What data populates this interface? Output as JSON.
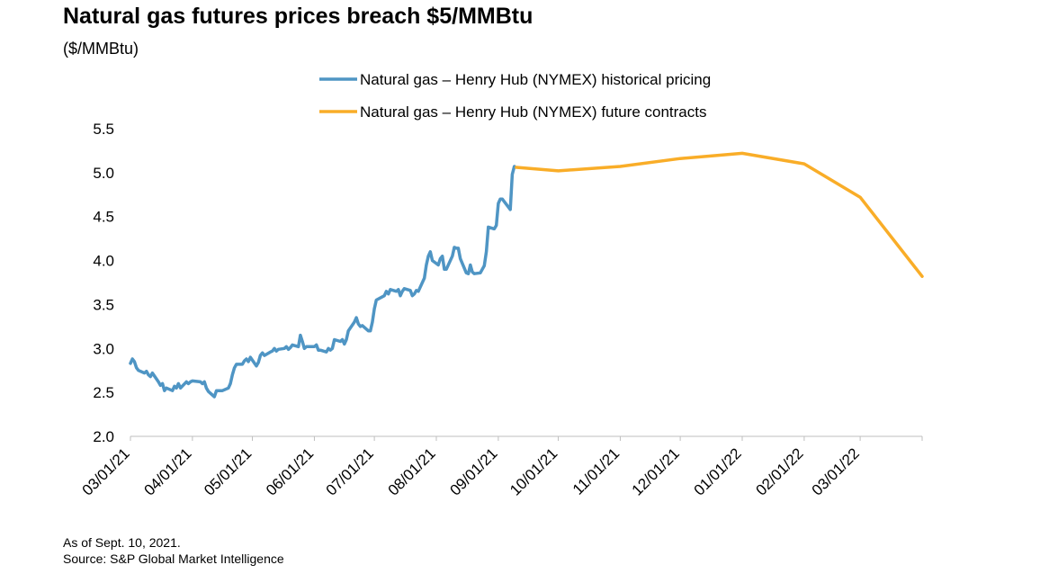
{
  "title": "Natural gas futures prices breach $5/MMBtu",
  "subtitle": "($/MMBtu)",
  "footnote": {
    "as_of": "As of Sept. 10, 2021.",
    "source": "Source: S&P Global Market Intelligence"
  },
  "chart_data": {
    "type": "line",
    "title": "Natural gas futures prices breach $5/MMBtu",
    "ylabel": "($/MMBtu)",
    "xlabel": "",
    "ylim": [
      2.0,
      5.5
    ],
    "yticks": [
      2.0,
      2.5,
      3.0,
      3.5,
      4.0,
      4.5,
      5.0,
      5.5
    ],
    "xticks": [
      "03/01/21",
      "04/01/21",
      "05/01/21",
      "06/01/21",
      "07/01/21",
      "08/01/21",
      "09/01/21",
      "10/01/21",
      "11/01/21",
      "12/01/21",
      "01/01/22",
      "02/01/22",
      "03/01/22"
    ],
    "xlim": [
      "2021-03-01",
      "2022-04-01"
    ],
    "grid": false,
    "legend_position": "top",
    "series": [
      {
        "name": "Natural gas – Henry Hub (NYMEX) historical pricing",
        "color": "#4f95c4",
        "points": [
          [
            "2021-03-01",
            2.83
          ],
          [
            "2021-03-02",
            2.88
          ],
          [
            "2021-03-03",
            2.85
          ],
          [
            "2021-03-04",
            2.78
          ],
          [
            "2021-03-05",
            2.75
          ],
          [
            "2021-03-08",
            2.72
          ],
          [
            "2021-03-09",
            2.74
          ],
          [
            "2021-03-10",
            2.7
          ],
          [
            "2021-03-11",
            2.68
          ],
          [
            "2021-03-12",
            2.72
          ],
          [
            "2021-03-15",
            2.62
          ],
          [
            "2021-03-16",
            2.58
          ],
          [
            "2021-03-17",
            2.6
          ],
          [
            "2021-03-18",
            2.52
          ],
          [
            "2021-03-19",
            2.55
          ],
          [
            "2021-03-22",
            2.52
          ],
          [
            "2021-03-23",
            2.57
          ],
          [
            "2021-03-24",
            2.55
          ],
          [
            "2021-03-25",
            2.6
          ],
          [
            "2021-03-26",
            2.55
          ],
          [
            "2021-03-29",
            2.62
          ],
          [
            "2021-03-30",
            2.6
          ],
          [
            "2021-03-31",
            2.62
          ],
          [
            "2021-04-01",
            2.63
          ],
          [
            "2021-04-05",
            2.62
          ],
          [
            "2021-04-06",
            2.6
          ],
          [
            "2021-04-07",
            2.62
          ],
          [
            "2021-04-08",
            2.55
          ],
          [
            "2021-04-09",
            2.51
          ],
          [
            "2021-04-12",
            2.45
          ],
          [
            "2021-04-13",
            2.52
          ],
          [
            "2021-04-14",
            2.52
          ],
          [
            "2021-04-15",
            2.52
          ],
          [
            "2021-04-16",
            2.52
          ],
          [
            "2021-04-19",
            2.55
          ],
          [
            "2021-04-20",
            2.6
          ],
          [
            "2021-04-21",
            2.7
          ],
          [
            "2021-04-22",
            2.78
          ],
          [
            "2021-04-23",
            2.82
          ],
          [
            "2021-04-26",
            2.82
          ],
          [
            "2021-04-27",
            2.86
          ],
          [
            "2021-04-28",
            2.88
          ],
          [
            "2021-04-29",
            2.85
          ],
          [
            "2021-04-30",
            2.9
          ],
          [
            "2021-05-03",
            2.8
          ],
          [
            "2021-05-04",
            2.84
          ],
          [
            "2021-05-05",
            2.92
          ],
          [
            "2021-05-06",
            2.95
          ],
          [
            "2021-05-07",
            2.92
          ],
          [
            "2021-05-10",
            2.96
          ],
          [
            "2021-05-11",
            2.97
          ],
          [
            "2021-05-12",
            3.0
          ],
          [
            "2021-05-13",
            2.97
          ],
          [
            "2021-05-14",
            2.99
          ],
          [
            "2021-05-17",
            3.0
          ],
          [
            "2021-05-18",
            3.02
          ],
          [
            "2021-05-19",
            2.99
          ],
          [
            "2021-05-20",
            3.01
          ],
          [
            "2021-05-21",
            3.04
          ],
          [
            "2021-05-24",
            3.02
          ],
          [
            "2021-05-25",
            3.15
          ],
          [
            "2021-05-26",
            3.08
          ],
          [
            "2021-05-27",
            3.0
          ],
          [
            "2021-05-28",
            3.02
          ],
          [
            "2021-06-01",
            3.02
          ],
          [
            "2021-06-02",
            3.04
          ],
          [
            "2021-06-03",
            2.98
          ],
          [
            "2021-06-04",
            2.98
          ],
          [
            "2021-06-07",
            2.96
          ],
          [
            "2021-06-08",
            3.0
          ],
          [
            "2021-06-09",
            2.98
          ],
          [
            "2021-06-10",
            3.0
          ],
          [
            "2021-06-11",
            3.1
          ],
          [
            "2021-06-14",
            3.08
          ],
          [
            "2021-06-15",
            3.1
          ],
          [
            "2021-06-16",
            3.05
          ],
          [
            "2021-06-17",
            3.1
          ],
          [
            "2021-06-18",
            3.2
          ],
          [
            "2021-06-21",
            3.3
          ],
          [
            "2021-06-22",
            3.35
          ],
          [
            "2021-06-23",
            3.28
          ],
          [
            "2021-06-24",
            3.25
          ],
          [
            "2021-06-25",
            3.26
          ],
          [
            "2021-06-28",
            3.2
          ],
          [
            "2021-06-29",
            3.2
          ],
          [
            "2021-06-30",
            3.3
          ],
          [
            "2021-07-01",
            3.45
          ],
          [
            "2021-07-02",
            3.55
          ],
          [
            "2021-07-06",
            3.6
          ],
          [
            "2021-07-07",
            3.65
          ],
          [
            "2021-07-08",
            3.62
          ],
          [
            "2021-07-09",
            3.67
          ],
          [
            "2021-07-12",
            3.65
          ],
          [
            "2021-07-13",
            3.67
          ],
          [
            "2021-07-14",
            3.6
          ],
          [
            "2021-07-15",
            3.65
          ],
          [
            "2021-07-16",
            3.68
          ],
          [
            "2021-07-19",
            3.66
          ],
          [
            "2021-07-20",
            3.6
          ],
          [
            "2021-07-21",
            3.62
          ],
          [
            "2021-07-22",
            3.66
          ],
          [
            "2021-07-23",
            3.65
          ],
          [
            "2021-07-26",
            3.8
          ],
          [
            "2021-07-27",
            3.95
          ],
          [
            "2021-07-28",
            4.05
          ],
          [
            "2021-07-29",
            4.1
          ],
          [
            "2021-07-30",
            4.0
          ],
          [
            "2021-08-02",
            3.95
          ],
          [
            "2021-08-03",
            4.02
          ],
          [
            "2021-08-04",
            4.05
          ],
          [
            "2021-08-05",
            3.9
          ],
          [
            "2021-08-06",
            3.9
          ],
          [
            "2021-08-09",
            4.05
          ],
          [
            "2021-08-10",
            4.15
          ],
          [
            "2021-08-11",
            4.14
          ],
          [
            "2021-08-12",
            4.14
          ],
          [
            "2021-08-13",
            4.02
          ],
          [
            "2021-08-16",
            3.86
          ],
          [
            "2021-08-17",
            3.85
          ],
          [
            "2021-08-18",
            3.95
          ],
          [
            "2021-08-19",
            3.87
          ],
          [
            "2021-08-20",
            3.85
          ],
          [
            "2021-08-23",
            3.86
          ],
          [
            "2021-08-24",
            3.9
          ],
          [
            "2021-08-25",
            3.94
          ],
          [
            "2021-08-26",
            4.1
          ],
          [
            "2021-08-27",
            4.38
          ],
          [
            "2021-08-30",
            4.36
          ],
          [
            "2021-08-31",
            4.4
          ],
          [
            "2021-09-01",
            4.65
          ],
          [
            "2021-09-02",
            4.7
          ],
          [
            "2021-09-03",
            4.7
          ],
          [
            "2021-09-07",
            4.58
          ],
          [
            "2021-09-08",
            4.98
          ],
          [
            "2021-09-09",
            5.07
          ]
        ]
      },
      {
        "name": "Natural gas – Henry Hub (NYMEX) future contracts",
        "color": "#f9ad28",
        "points": [
          [
            "2021-09-10",
            5.06
          ],
          [
            "2021-10-01",
            5.02
          ],
          [
            "2021-11-01",
            5.07
          ],
          [
            "2021-12-01",
            5.16
          ],
          [
            "2022-01-01",
            5.22
          ],
          [
            "2022-02-01",
            5.1
          ],
          [
            "2022-03-01",
            4.72
          ],
          [
            "2022-04-01",
            3.82
          ]
        ]
      }
    ]
  }
}
